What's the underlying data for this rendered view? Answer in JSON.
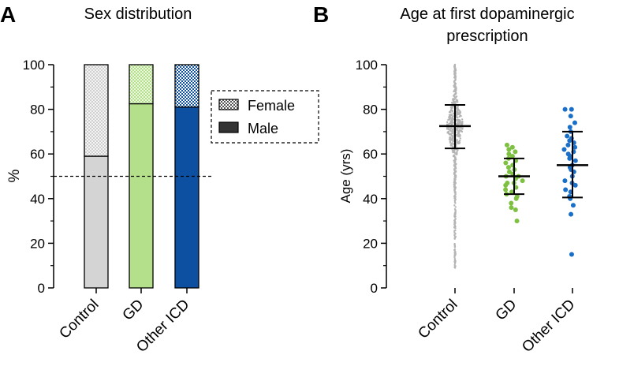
{
  "colors": {
    "control": "#d4d4d4",
    "control_dots": "#b4b4b4",
    "gd": "#b5e08b",
    "gd_dots": "#7ec142",
    "icd": "#0d4fa0",
    "icd_dots": "#1a6fc8",
    "axis": "#000000"
  },
  "chart_data": [
    {
      "panel_letter": "A",
      "type": "bar",
      "stacked": true,
      "title": "Sex distribution",
      "ylabel": "%",
      "xlabel": "",
      "ylim": [
        0,
        100
      ],
      "yticks": [
        0,
        20,
        40,
        60,
        80,
        100
      ],
      "categories": [
        "Control",
        "GD",
        "Other ICD"
      ],
      "series": [
        {
          "name": "Male",
          "values": [
            59,
            82.5,
            81
          ],
          "pattern": "solid"
        },
        {
          "name": "Female",
          "values": [
            41,
            17.5,
            19
          ],
          "pattern": "checker"
        }
      ],
      "reference_line": {
        "y": 50,
        "style": "dashed"
      },
      "legend": {
        "position": "right",
        "entries": [
          "Female",
          "Male"
        ]
      },
      "grid": false
    },
    {
      "panel_letter": "B",
      "type": "scatter",
      "title": "Age at first dopaminergic prescription",
      "title_lines": [
        "Age at first dopaminergic",
        "prescription"
      ],
      "ylabel": "Age (yrs)",
      "xlabel": "",
      "ylim": [
        0,
        100
      ],
      "yticks": [
        0,
        20,
        40,
        60,
        80,
        100
      ],
      "categories": [
        "Control",
        "GD",
        "Other ICD"
      ],
      "summary": [
        {
          "group": "Control",
          "mean": 72.5,
          "sd_low": 62.5,
          "sd_high": 82
        },
        {
          "group": "GD",
          "mean": 50,
          "sd_low": 42,
          "sd_high": 58
        },
        {
          "group": "Other ICD",
          "mean": 55,
          "sd_low": 40.5,
          "sd_high": 70
        }
      ],
      "points": {
        "Control": {
          "distribution": "dense",
          "min": 9,
          "max": 100,
          "center": 72.5
        },
        "GD": [
          30,
          35,
          36,
          38,
          40,
          41,
          42,
          43,
          44,
          45,
          46,
          47,
          47,
          48,
          49,
          50,
          50,
          51,
          52,
          53,
          54,
          55,
          56,
          57,
          58,
          59,
          60,
          61,
          62,
          63,
          64
        ],
        "Other ICD": [
          15,
          33,
          37,
          40,
          41,
          43,
          44,
          46,
          47,
          48,
          50,
          52,
          53,
          54,
          55,
          57,
          58,
          59,
          60,
          61,
          62,
          63,
          64,
          65,
          66,
          67,
          68,
          70,
          72,
          74,
          77,
          80,
          80
        ]
      },
      "grid": false
    }
  ]
}
